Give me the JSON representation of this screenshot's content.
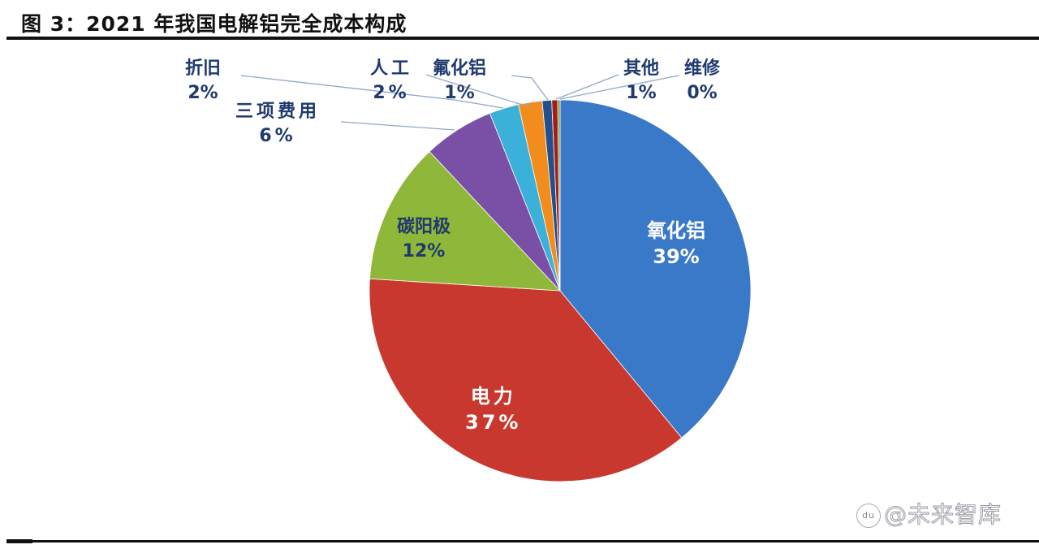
{
  "title": "图 3：2021 年我国电解铝完全成本构成",
  "chart_data": {
    "type": "pie",
    "title": "2021 年我国电解铝完全成本构成",
    "start_angle": "12 o'clock, clockwise",
    "slices": [
      {
        "label": "氧化铝",
        "value": 39,
        "display": "39%",
        "color": "#3a78c8"
      },
      {
        "label": "电力",
        "value": 37,
        "display": "37%",
        "color": "#c8382e"
      },
      {
        "label": "碳阳极",
        "value": 12,
        "display": "12%",
        "color": "#8fb83a"
      },
      {
        "label": "三项费用",
        "value": 6,
        "display": "6%",
        "color": "#7a4fa6"
      },
      {
        "label": "折旧",
        "value": 2.5,
        "display": "2%",
        "color": "#3bb0d8"
      },
      {
        "label": "人工",
        "value": 2,
        "display": "2%",
        "color": "#f28c1c"
      },
      {
        "label": "氟化铝",
        "value": 0.8,
        "display": "1%",
        "color": "#234f8c"
      },
      {
        "label": "其他",
        "value": 0.5,
        "display": "1%",
        "color": "#a11e1e"
      },
      {
        "label": "维修",
        "value": 0.2,
        "display": "0%",
        "color": "#7e9a28"
      }
    ],
    "legend": "none (data labels on/around slices)"
  },
  "labels": {
    "alumina": {
      "name": "氧化铝",
      "pct": "39%"
    },
    "power": {
      "name": "电力",
      "pct": "37%"
    },
    "anode": {
      "name": "碳阳极",
      "pct": "12%"
    },
    "expenses": {
      "name": "三项费用",
      "pct": "6%"
    },
    "depreciation": {
      "name": "折旧",
      "pct": "2%"
    },
    "labor": {
      "name": "人工",
      "pct": "2%"
    },
    "fluoride": {
      "name": "氟化铝",
      "pct": "1%"
    },
    "other": {
      "name": "其他",
      "pct": "1%"
    },
    "maintenance": {
      "name": "维修",
      "pct": "0%"
    }
  },
  "watermark": {
    "icon": "du",
    "text": "@未来智库"
  }
}
